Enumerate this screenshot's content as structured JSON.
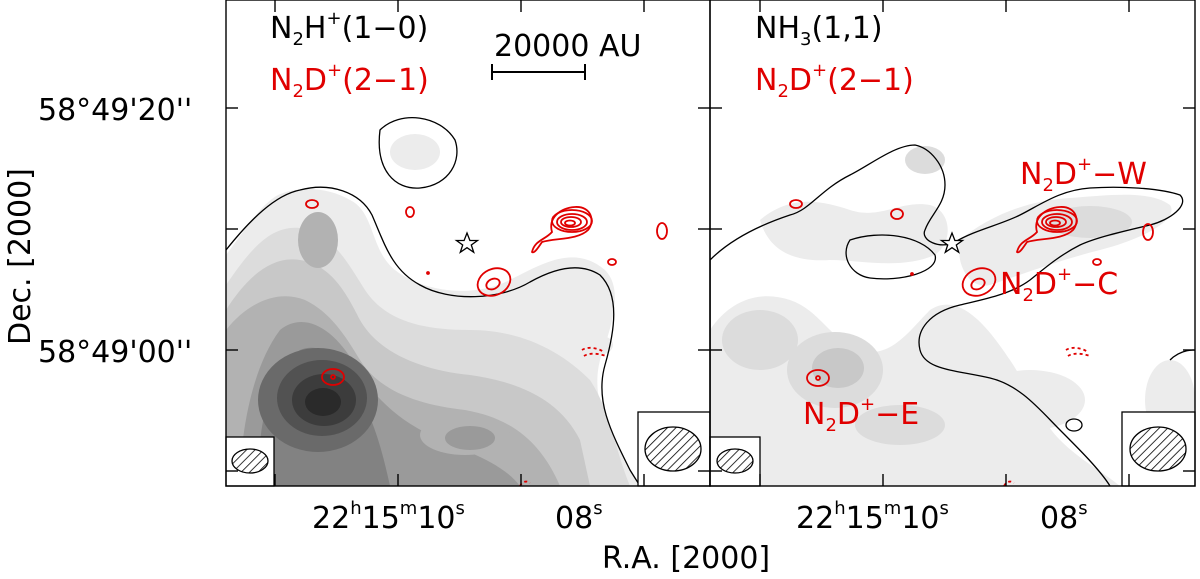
{
  "chart_data": [
    {
      "type": "contour-map",
      "title": "",
      "xlabel": "R.A. [2000]",
      "ylabel": "Dec. [2000]",
      "x_ticks": [
        {
          "h": "22",
          "m": "15",
          "s": "10",
          "text_sup_h": "h",
          "text_sup_m": "m",
          "text_sup_s": "s"
        },
        {
          "s": "08",
          "text_sup_s": "s"
        }
      ],
      "y_ticks": [
        "58°49'20''",
        "58°49'00''"
      ],
      "grayscale_tracer": {
        "species": "N",
        "sub": "2",
        "after": "H",
        "sup": "+",
        "tail": "(1−0)"
      },
      "contour_tracer": {
        "species": "N",
        "sub": "2",
        "after": "D",
        "sup": "+",
        "tail": "(2−1)"
      },
      "scalebar_label": "20000 AU",
      "beam_ellipse_grayscale": "hatched-ellipse-icon",
      "beam_ellipse_contour": "hatched-ellipse-icon",
      "source_marker": "star-icon"
    },
    {
      "type": "contour-map",
      "title": "",
      "x_ticks": [
        {
          "h": "22",
          "m": "15",
          "s": "10",
          "text_sup_h": "h",
          "text_sup_m": "m",
          "text_sup_s": "s"
        },
        {
          "s": "08",
          "text_sup_s": "s"
        }
      ],
      "grayscale_tracer": {
        "species": "NH",
        "sub": "3",
        "tail": "(1,1)"
      },
      "contour_tracer": {
        "species": "N",
        "sub": "2",
        "after": "D",
        "sup": "+",
        "tail": "(2−1)"
      },
      "annotations": [
        {
          "species": "N",
          "sub": "2",
          "after": "D",
          "sup": "+",
          "suffix": "−W"
        },
        {
          "species": "N",
          "sub": "2",
          "after": "D",
          "sup": "+",
          "suffix": "−C"
        },
        {
          "species": "N",
          "sub": "2",
          "after": "D",
          "sup": "+",
          "suffix": "−E"
        }
      ],
      "beam_ellipse_grayscale": "hatched-ellipse-icon",
      "beam_ellipse_contour": "hatched-ellipse-icon",
      "source_marker": "star-icon"
    }
  ],
  "colors": {
    "contour_red": "#e00000",
    "gray_levels": [
      "#ececec",
      "#dcdcdc",
      "#c8c8c8",
      "#b2b2b2",
      "#9a9a9a",
      "#828282",
      "#6a6a6a",
      "#525252",
      "#3c3c3c",
      "#2a2a2a"
    ]
  }
}
